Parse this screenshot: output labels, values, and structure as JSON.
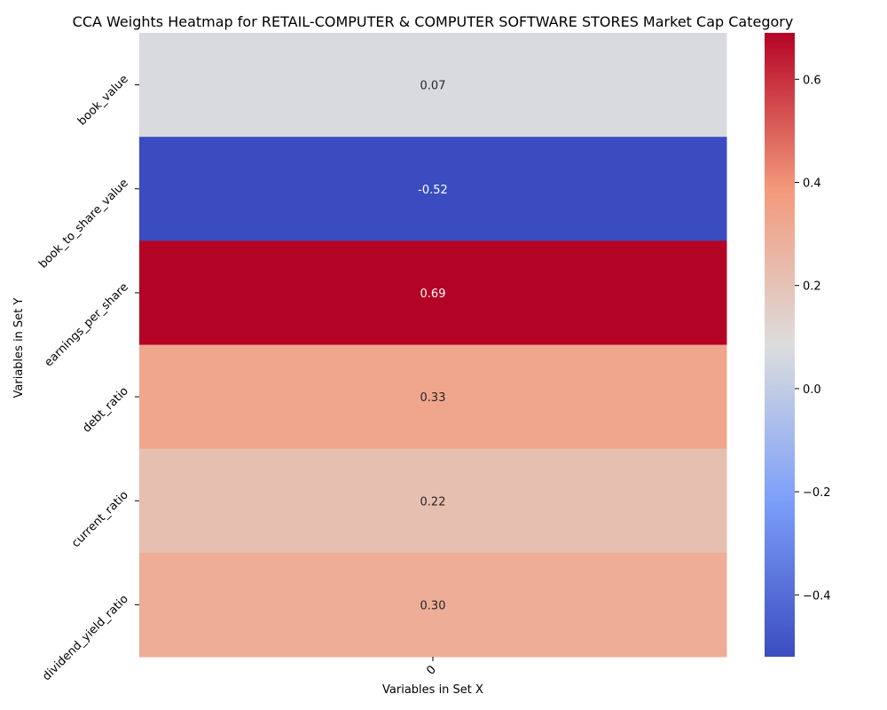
{
  "chart_data": {
    "type": "heatmap",
    "title": "CCA Weights Heatmap for RETAIL-COMPUTER & COMPUTER SOFTWARE STORES Market Cap Category",
    "xlabel": "Variables in Set X",
    "ylabel": "Variables in Set Y",
    "x_categories": [
      "0"
    ],
    "y_categories": [
      "book_value",
      "book_to_share_value",
      "earnings_per_share",
      "debt_ratio",
      "current_ratio",
      "dividend_yield_ratio"
    ],
    "values": [
      [
        0.07
      ],
      [
        -0.52
      ],
      [
        0.69
      ],
      [
        0.33
      ],
      [
        0.22
      ],
      [
        0.3
      ]
    ],
    "value_labels": [
      "0.07",
      "-0.52",
      "0.69",
      "0.33",
      "0.22",
      "0.30"
    ],
    "colormap": "coolwarm",
    "vmin": -0.52,
    "vmax": 0.69,
    "colorbar_ticks": [
      -0.4,
      -0.2,
      0.0,
      0.2,
      0.4,
      0.6
    ],
    "colorbar_tick_labels": [
      "−0.4",
      "−0.2",
      "0.0",
      "0.2",
      "0.4",
      "0.6"
    ]
  }
}
